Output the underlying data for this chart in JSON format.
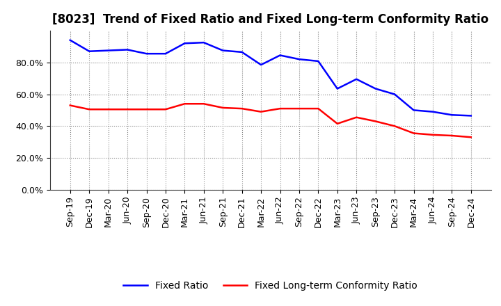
{
  "title": "[8023]  Trend of Fixed Ratio and Fixed Long-term Conformity Ratio",
  "x_labels": [
    "Sep-19",
    "Dec-19",
    "Mar-20",
    "Jun-20",
    "Sep-20",
    "Dec-20",
    "Mar-21",
    "Jun-21",
    "Sep-21",
    "Dec-21",
    "Mar-22",
    "Jun-22",
    "Sep-22",
    "Dec-22",
    "Mar-23",
    "Jun-23",
    "Sep-23",
    "Dec-23",
    "Mar-24",
    "Jun-24",
    "Sep-24",
    "Dec-24"
  ],
  "fixed_ratio": [
    0.94,
    0.87,
    0.875,
    0.88,
    0.855,
    0.855,
    0.92,
    0.925,
    0.875,
    0.865,
    0.785,
    0.845,
    0.82,
    0.808,
    0.635,
    0.695,
    0.635,
    0.6,
    0.5,
    0.49,
    0.47,
    0.465
  ],
  "fixed_lt_ratio": [
    0.53,
    0.505,
    0.505,
    0.505,
    0.505,
    0.505,
    0.54,
    0.54,
    0.515,
    0.51,
    0.49,
    0.51,
    0.51,
    0.51,
    0.415,
    0.455,
    0.43,
    0.4,
    0.355,
    0.345,
    0.34,
    0.33
  ],
  "fixed_ratio_color": "#0000FF",
  "fixed_lt_ratio_color": "#FF0000",
  "background_color": "#FFFFFF",
  "grid_color": "#888888",
  "ylim": [
    0.0,
    1.0
  ],
  "yticks": [
    0.0,
    0.2,
    0.4,
    0.6,
    0.8
  ],
  "legend_fixed_ratio": "Fixed Ratio",
  "legend_fixed_lt_ratio": "Fixed Long-term Conformity Ratio",
  "title_fontsize": 12,
  "axis_fontsize": 9,
  "legend_fontsize": 10,
  "line_width": 1.8
}
